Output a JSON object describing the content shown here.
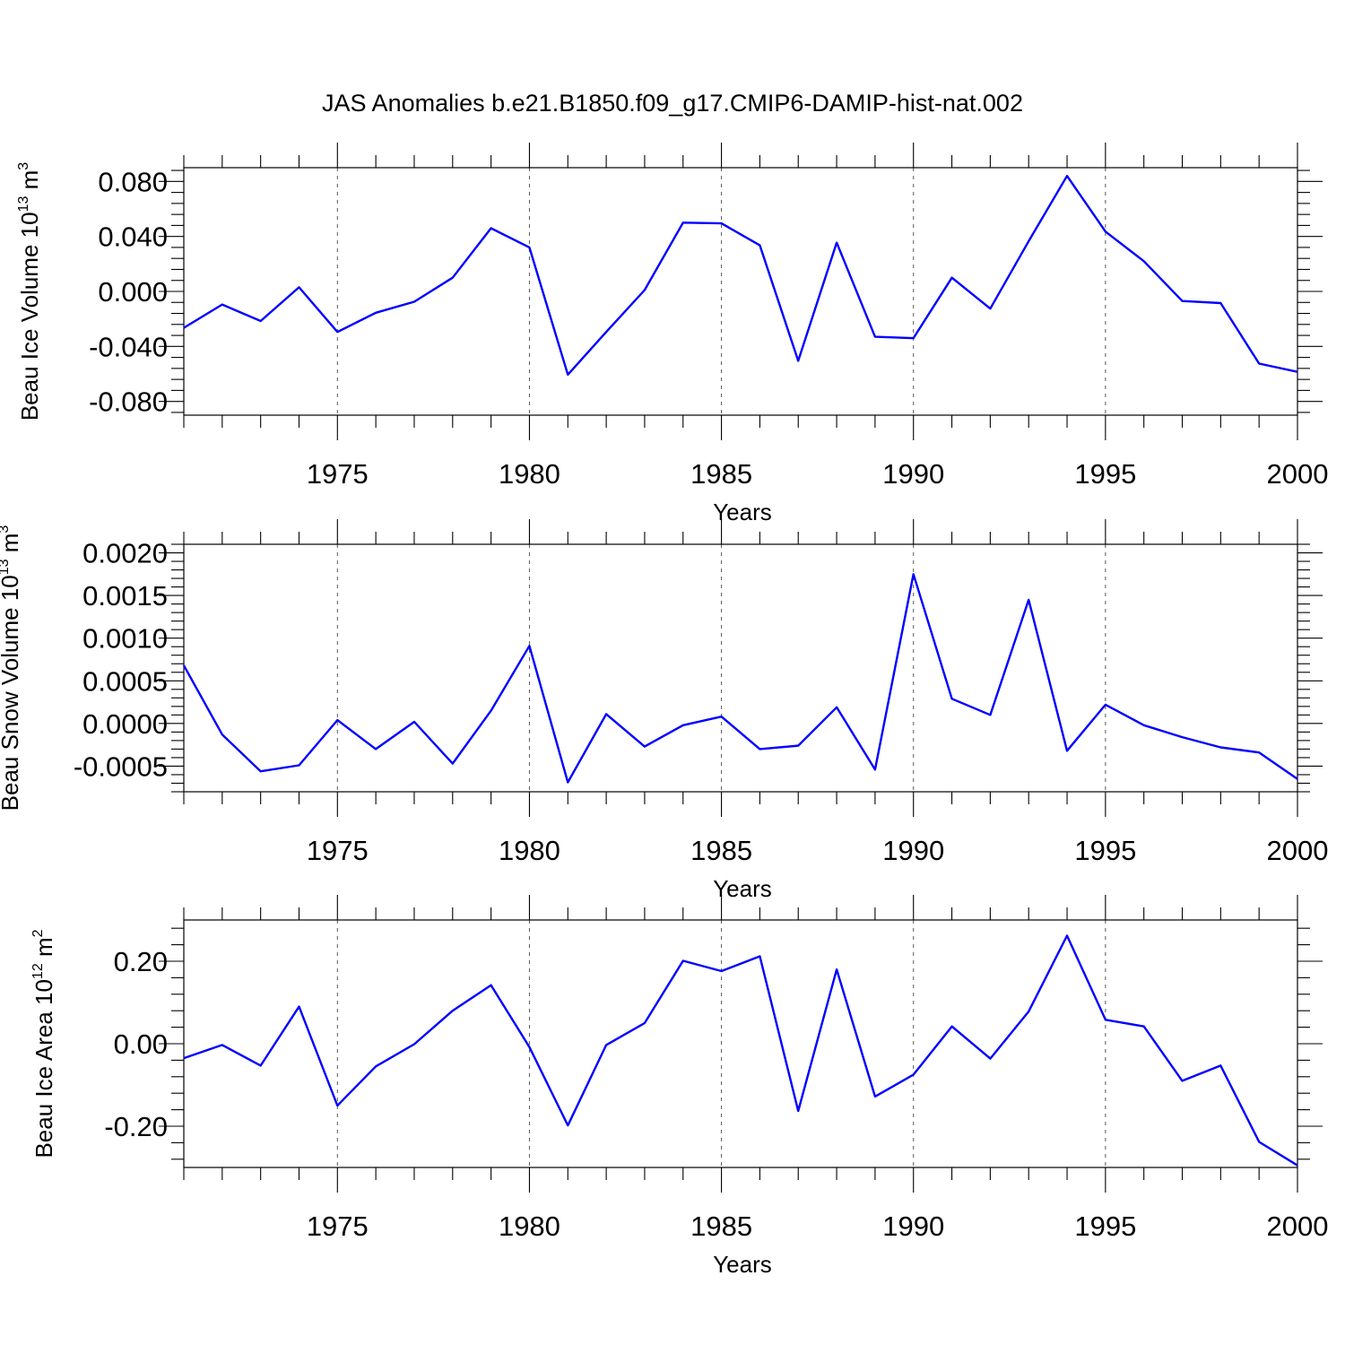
{
  "title": "JAS Anomalies b.e21.B1850.f09_g17.CMIP6-DAMIP-hist-nat.002",
  "colors": {
    "line": "#0000ff",
    "axis": "#000000",
    "grid": "#555555"
  },
  "chart_data": [
    {
      "type": "line",
      "xlabel": "Years",
      "ylabel": {
        "main": "Beau Ice Volume 10",
        "sup": "13",
        "unit": " m",
        "unit_sup": "3"
      },
      "xlim": [
        1971,
        2000
      ],
      "ylim": [
        -0.09,
        0.09
      ],
      "xticks": [
        1975,
        1980,
        1985,
        1990,
        1995,
        2000
      ],
      "xtick_labels": [
        "1975",
        "1980",
        "1985",
        "1990",
        "1995",
        "2000"
      ],
      "yticks": [
        0.08,
        0.04,
        0.0,
        -0.04,
        -0.08
      ],
      "ytick_labels": [
        "0.080",
        "0.040",
        "0.000",
        "-0.040",
        "-0.080"
      ],
      "grid": "dashed vertical lines at major x ticks",
      "series": [
        {
          "name": "Beau Ice Volume",
          "x": [
            1971,
            1972,
            1973,
            1974,
            1975,
            1976,
            1977,
            1978,
            1979,
            1980,
            1981,
            1982,
            1983,
            1984,
            1985,
            1986,
            1987,
            1988,
            1989,
            1990,
            1991,
            1992,
            1993,
            1994,
            1995,
            1996,
            1997,
            1998,
            1999,
            2000
          ],
          "y": [
            -0.0265,
            -0.0095,
            -0.0215,
            0.003,
            -0.0295,
            -0.0155,
            -0.0075,
            0.01,
            0.046,
            0.032,
            -0.0605,
            -0.0295,
            0.001,
            0.05,
            0.0495,
            0.0335,
            -0.0505,
            0.0355,
            -0.033,
            -0.034,
            0.01,
            -0.0125,
            0.0365,
            0.084,
            0.0435,
            0.022,
            -0.007,
            -0.0085,
            -0.0525,
            -0.0585
          ]
        }
      ]
    },
    {
      "type": "line",
      "xlabel": "Years",
      "ylabel": {
        "main": "Beau Snow Volume 10",
        "sup": "13",
        "unit": " m",
        "unit_sup": "3"
      },
      "xlim": [
        1971,
        2000
      ],
      "ylim": [
        -0.0008,
        0.0021
      ],
      "xticks": [
        1975,
        1980,
        1985,
        1990,
        1995,
        2000
      ],
      "xtick_labels": [
        "1975",
        "1980",
        "1985",
        "1990",
        "1995",
        "2000"
      ],
      "yticks": [
        0.002,
        0.0015,
        0.001,
        0.0005,
        0.0,
        -0.0005
      ],
      "ytick_labels": [
        "0.0020",
        "0.0015",
        "0.0010",
        "0.0005",
        "0.0000",
        "-0.0005"
      ],
      "grid": "dashed vertical lines at major x ticks",
      "series": [
        {
          "name": "Beau Snow Volume",
          "x": [
            1971,
            1972,
            1973,
            1974,
            1975,
            1976,
            1977,
            1978,
            1979,
            1980,
            1981,
            1982,
            1983,
            1984,
            1985,
            1986,
            1987,
            1988,
            1989,
            1990,
            1991,
            1992,
            1993,
            1994,
            1995,
            1996,
            1997,
            1998,
            1999,
            2000
          ],
          "y": [
            0.00068,
            -0.00013,
            -0.00056,
            -0.00049,
            4e-05,
            -0.0003,
            2e-05,
            -0.00047,
            0.00015,
            0.00091,
            -0.00069,
            0.00011,
            -0.00027,
            -2e-05,
            8e-05,
            -0.0003,
            -0.00026,
            0.00019,
            -0.00054,
            0.00175,
            0.00029,
            0.0001,
            0.00145,
            -0.00032,
            0.00022,
            -2e-05,
            -0.00016,
            -0.00028,
            -0.00034,
            -0.00065
          ]
        }
      ]
    },
    {
      "type": "line",
      "xlabel": "Years",
      "ylabel": {
        "main": "Beau Ice Area 10",
        "sup": "12",
        "unit": " m",
        "unit_sup": "2"
      },
      "xlim": [
        1971,
        2000
      ],
      "ylim": [
        -0.3,
        0.3
      ],
      "xticks": [
        1975,
        1980,
        1985,
        1990,
        1995,
        2000
      ],
      "xtick_labels": [
        "1975",
        "1980",
        "1985",
        "1990",
        "1995",
        "2000"
      ],
      "yticks": [
        0.2,
        0.0,
        -0.2
      ],
      "ytick_labels": [
        "0.20",
        "0.00",
        "-0.20"
      ],
      "grid": "dashed vertical lines at major x ticks",
      "series": [
        {
          "name": "Beau Ice Area",
          "x": [
            1971,
            1972,
            1973,
            1974,
            1975,
            1976,
            1977,
            1978,
            1979,
            1980,
            1981,
            1982,
            1983,
            1984,
            1985,
            1986,
            1987,
            1988,
            1989,
            1990,
            1991,
            1992,
            1993,
            1994,
            1995,
            1996,
            1997,
            1998,
            1999,
            2000
          ],
          "y": [
            -0.035,
            -0.003,
            -0.053,
            0.09,
            -0.15,
            -0.055,
            -0.001,
            0.08,
            0.142,
            -0.008,
            -0.198,
            -0.003,
            0.05,
            0.201,
            0.176,
            0.212,
            -0.163,
            0.18,
            -0.128,
            -0.075,
            0.042,
            -0.036,
            0.078,
            0.262,
            0.058,
            0.042,
            -0.09,
            -0.053,
            -0.238,
            -0.295
          ]
        }
      ]
    }
  ]
}
